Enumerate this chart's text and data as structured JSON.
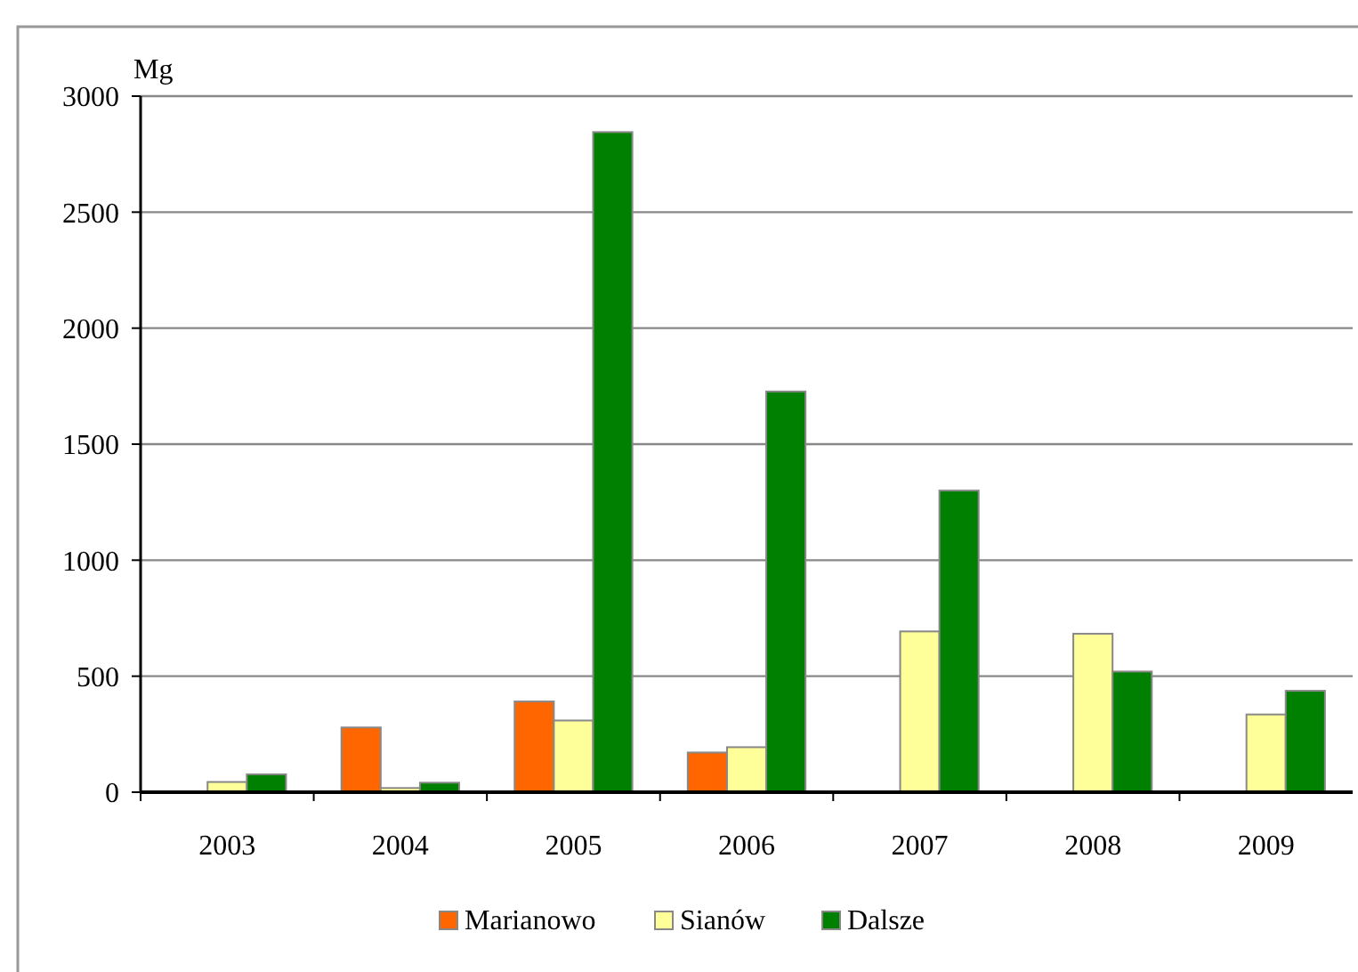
{
  "chart_data": {
    "type": "bar",
    "ylabel": "Mg",
    "categories": [
      "2003",
      "2004",
      "2005",
      "2006",
      "2007",
      "2008",
      "2009"
    ],
    "series": [
      {
        "name": "Marianowo",
        "color": "#ff6600",
        "values": [
          null,
          279,
          391,
          171,
          null,
          null,
          null
        ]
      },
      {
        "name": "Sianów",
        "color": "#ffff99",
        "values": [
          44,
          18,
          309,
          194,
          693,
          683,
          335
        ]
      },
      {
        "name": "Dalsze",
        "color": "#008000",
        "values": [
          77,
          41,
          2845,
          1727,
          1300,
          520,
          437
        ]
      }
    ],
    "ylim": [
      0,
      3000
    ],
    "yticks": [
      0,
      500,
      1000,
      1500,
      2000,
      2500,
      3000
    ],
    "grid": "y",
    "legend": "bottom"
  }
}
